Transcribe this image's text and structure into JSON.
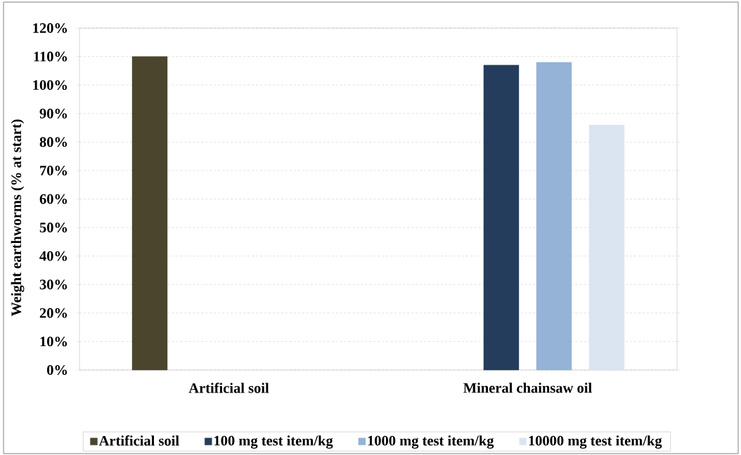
{
  "chart_data": {
    "type": "bar",
    "ylabel": "Weight earthworms (% at start)",
    "categories": [
      "Artificial soil",
      "Mineral chainsaw oil"
    ],
    "series": [
      {
        "name": "Artificial soil",
        "color": "#4b452e",
        "values": [
          110,
          null
        ]
      },
      {
        "name": "100 mg test item/kg",
        "color": "#243d5d",
        "values": [
          null,
          107
        ]
      },
      {
        "name": "1000 mg test item/kg",
        "color": "#95b3d7",
        "values": [
          null,
          108
        ]
      },
      {
        "name": "10000 mg test item/kg",
        "color": "#dbe5f1",
        "values": [
          null,
          86
        ]
      }
    ],
    "ylim": [
      0,
      120
    ],
    "yticks": [
      {
        "value": 0,
        "label": "0%"
      },
      {
        "value": 10,
        "label": "10%"
      },
      {
        "value": 20,
        "label": "20%"
      },
      {
        "value": 30,
        "label": "30%"
      },
      {
        "value": 40,
        "label": "40%"
      },
      {
        "value": 50,
        "label": "50%"
      },
      {
        "value": 60,
        "label": "60%"
      },
      {
        "value": 70,
        "label": "70%"
      },
      {
        "value": 80,
        "label": "80%"
      },
      {
        "value": 90,
        "label": "90%"
      },
      {
        "value": 100,
        "label": "100%"
      },
      {
        "value": 110,
        "label": "110%"
      },
      {
        "value": 120,
        "label": "120%"
      }
    ],
    "grid": "y",
    "legend": "bottom"
  }
}
